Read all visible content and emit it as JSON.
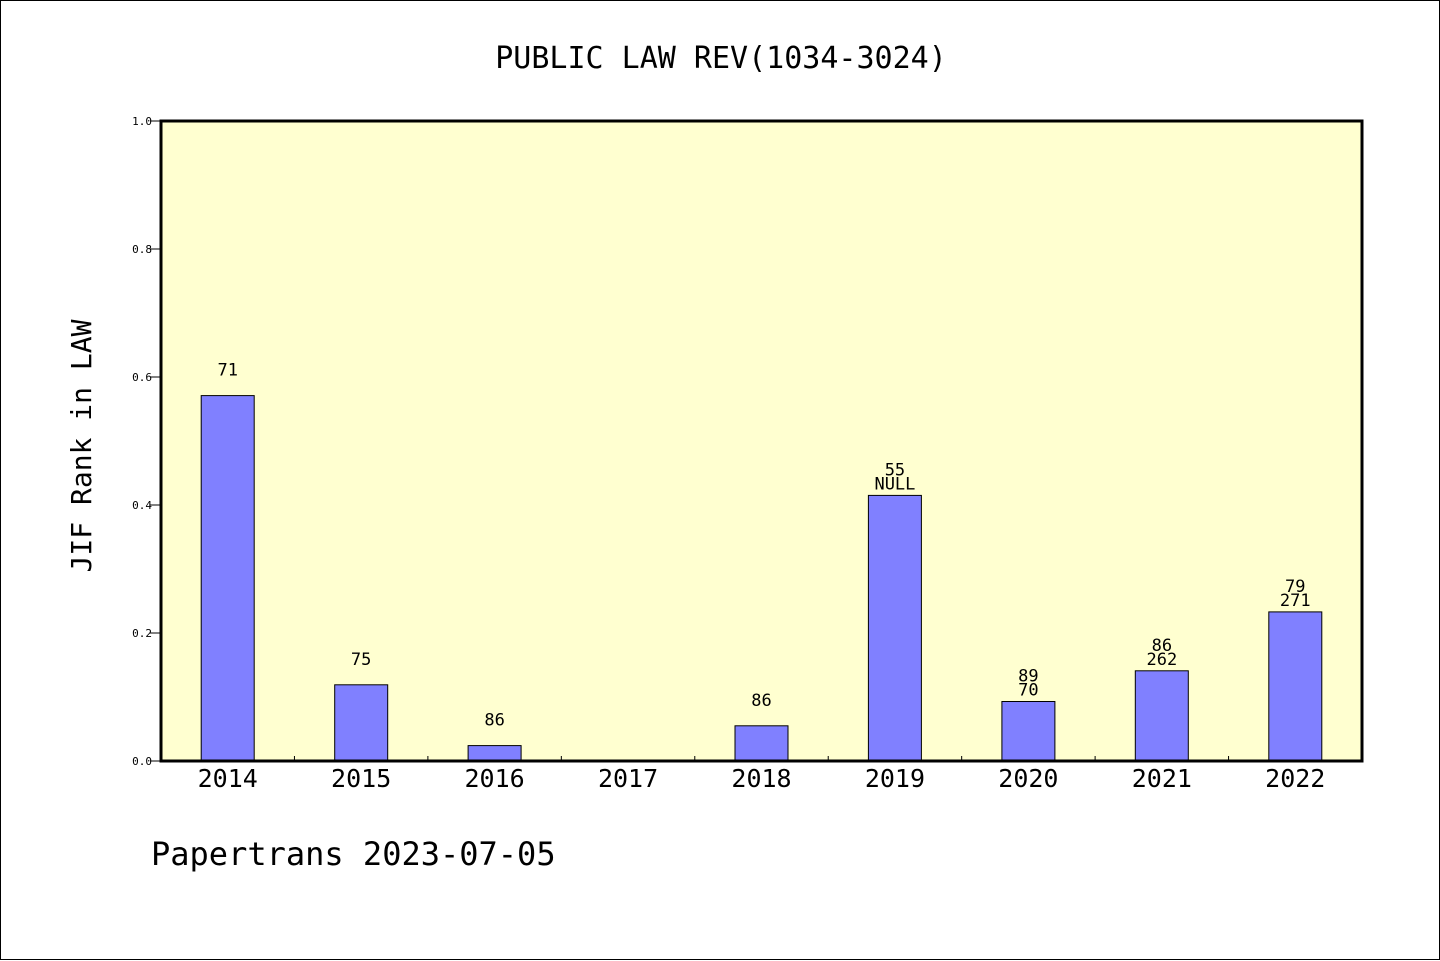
{
  "chart_data": {
    "type": "bar",
    "title": "PUBLIC LAW REV(1034-3024)",
    "xlabel": "",
    "ylabel": "JIF Rank in LAW",
    "ylim": [
      0,
      1.0
    ],
    "yticks": [
      "0.0",
      "0.2",
      "0.4",
      "0.6",
      "0.8",
      "1.0"
    ],
    "categories": [
      "2014",
      "2015",
      "2016",
      "2017",
      "2018",
      "2019",
      "2020",
      "2021",
      "2022"
    ],
    "values": [
      0.571,
      0.119,
      0.024,
      0,
      0.055,
      0.415,
      0.093,
      0.141,
      0.233
    ],
    "labels_top": [
      "71",
      "75",
      "86",
      "",
      "86",
      "55",
      "89",
      "86",
      "79"
    ],
    "labels_bottom": [
      "",
      "",
      "",
      "",
      "",
      "NULL",
      "70",
      "262",
      "271"
    ],
    "grid": false,
    "legend": "none",
    "bar_color": "#8080ff",
    "plot_background": "#ffffd0",
    "footer": "Papertrans 2023-07-05"
  }
}
